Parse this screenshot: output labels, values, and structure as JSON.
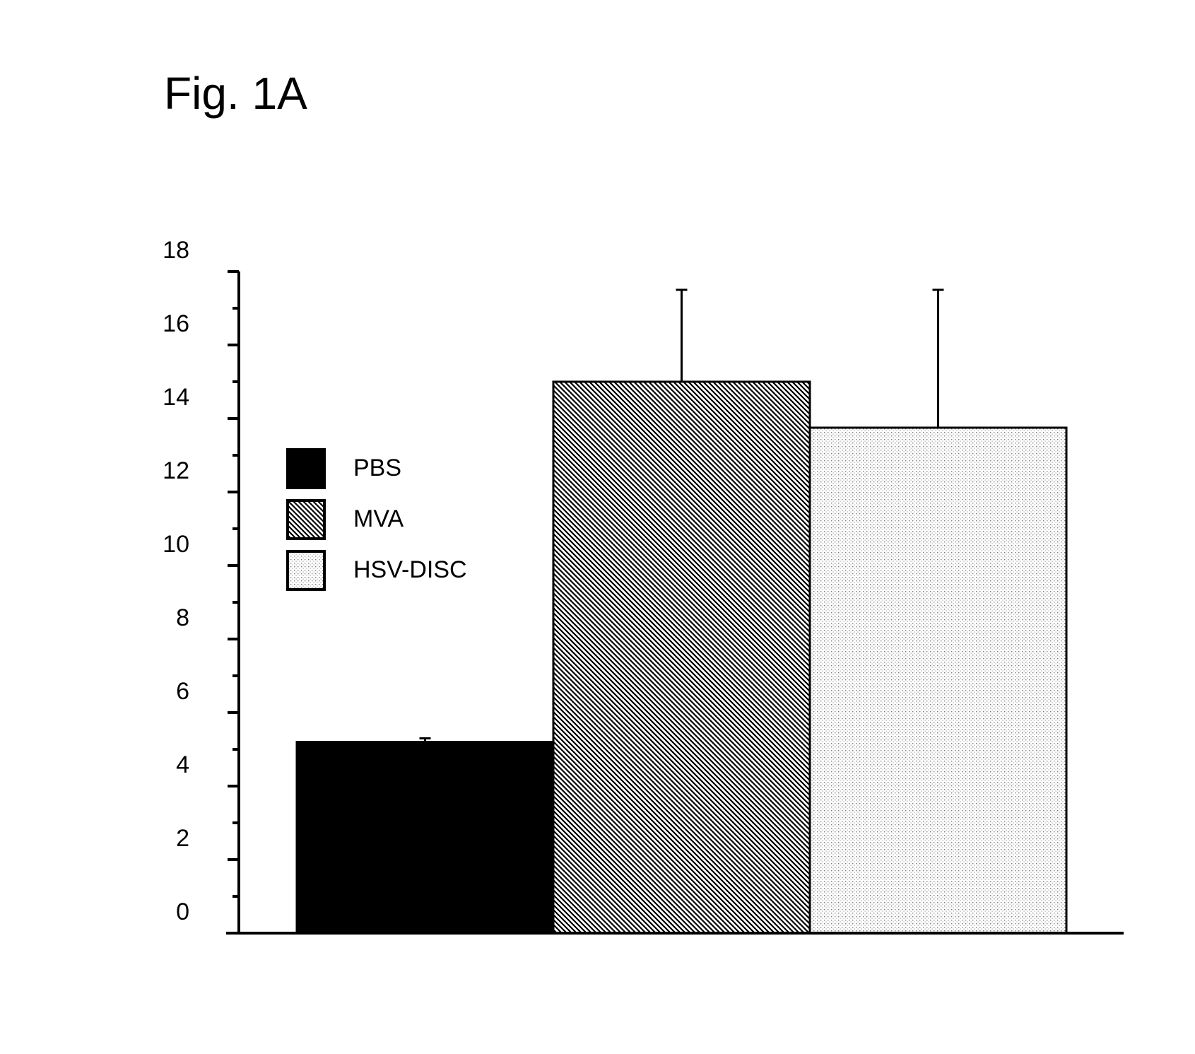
{
  "figure": {
    "title": "Fig. 1A"
  },
  "chart_data": {
    "type": "bar",
    "title": "Fig. 1A",
    "xlabel": "",
    "ylabel": "",
    "ylim": [
      0,
      18
    ],
    "y_ticks": [
      "0",
      "2",
      "4",
      "6",
      "8",
      "10",
      "12",
      "14",
      "16",
      "18"
    ],
    "categories": [
      "PBS",
      "MVA",
      "HSV-DISC"
    ],
    "values": [
      5.2,
      15.0,
      13.75
    ],
    "error_upper": [
      5.3,
      17.5,
      17.5
    ],
    "fills": [
      "solid",
      "diagonal-hatch",
      "dots"
    ],
    "grid": false,
    "legend": {
      "position": "upper-left",
      "entries": [
        {
          "label": "PBS",
          "fill": "solid"
        },
        {
          "label": "MVA",
          "fill": "diagonal-hatch"
        },
        {
          "label": "HSV-DISC",
          "fill": "dots"
        }
      ]
    },
    "colors": {
      "ink": "#000000",
      "background": "#ffffff"
    }
  }
}
